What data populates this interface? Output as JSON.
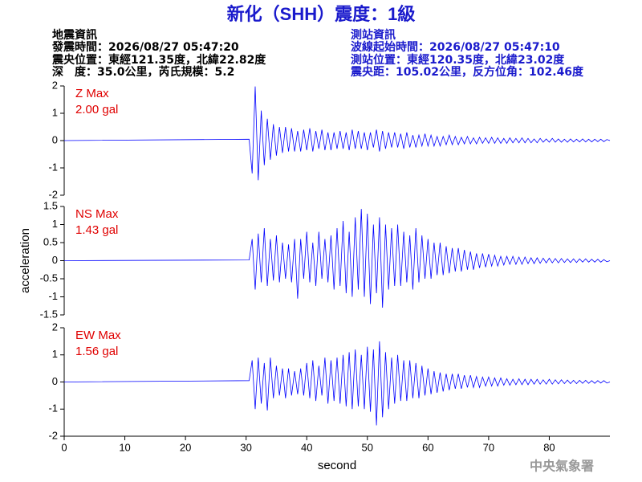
{
  "header": {
    "title": "新化（SHH）震度：1級",
    "left": [
      "地震資訊",
      "發震時間：2026/08/27 05:47:20",
      "震央位置：東經121.35度，北緯22.82度",
      "深　度：35.0公里，芮氏規模：5.2"
    ],
    "right": [
      "測站資訊",
      "波線起始時間：2026/08/27 05:47:10",
      "測站位置：東經120.35度，北緯23.02度",
      "震央距：105.02公里，反方位角：102.46度"
    ]
  },
  "chart_data": [
    {
      "type": "line",
      "annotations": [
        "Z Max",
        "2.00 gal"
      ],
      "color": "#0000ff",
      "xlim": [
        0,
        90
      ],
      "ylim": [
        -2,
        2
      ],
      "yticks": [
        -2,
        -1,
        0,
        1,
        2
      ],
      "x": [
        0,
        30.5,
        31,
        31.5,
        32,
        32.5,
        33,
        33.5,
        34,
        34.5,
        35,
        35.5,
        36,
        36.5,
        37,
        37.5,
        38,
        38.5,
        39,
        39.5,
        40,
        40.5,
        41,
        41.5,
        42,
        42.5,
        43,
        43.5,
        44,
        44.5,
        45,
        45.5,
        46,
        46.5,
        47,
        47.5,
        48,
        48.5,
        49,
        49.5,
        50,
        50.5,
        51,
        51.5,
        52,
        52.5,
        53,
        53.5,
        54,
        54.5,
        55,
        55.5,
        56,
        56.5,
        57,
        57.5,
        58,
        58.5,
        59,
        59.5,
        60,
        60.5,
        61,
        61.5,
        62,
        62.5,
        63,
        63.5,
        64,
        64.5,
        65,
        65.5,
        66,
        66.5,
        67,
        67.5,
        68,
        68.5,
        69,
        69.5,
        70,
        70.5,
        71,
        71.5,
        72,
        72.5,
        73,
        73.5,
        74,
        74.5,
        75,
        75.5,
        76,
        76.5,
        77,
        77.5,
        78,
        78.5,
        79,
        79.5,
        80,
        80.5,
        81,
        81.5,
        82,
        82.5,
        83,
        83.5,
        84,
        84.5,
        85,
        85.5,
        86,
        86.5,
        87,
        87.5,
        88,
        88.5,
        89,
        89.5,
        90
      ],
      "values": [
        0,
        0.05,
        -1.2,
        1.98,
        -1.45,
        1.1,
        -0.9,
        0.8,
        -0.7,
        0.6,
        -0.55,
        0.5,
        -0.45,
        0.5,
        -0.4,
        0.45,
        -0.4,
        0.35,
        -0.4,
        0.4,
        -0.35,
        0.45,
        -0.4,
        0.35,
        -0.3,
        0.4,
        -0.35,
        0.3,
        -0.35,
        0.3,
        -0.3,
        0.35,
        -0.3,
        0.3,
        -0.35,
        0.4,
        -0.3,
        0.35,
        -0.3,
        0.3,
        -0.35,
        0.3,
        -0.25,
        0.4,
        -0.4,
        0.35,
        -0.3,
        0.3,
        -0.25,
        0.3,
        -0.25,
        0.25,
        -0.3,
        0.3,
        -0.25,
        0.2,
        -0.25,
        0.2,
        -0.2,
        0.25,
        -0.2,
        0.2,
        -0.2,
        0.15,
        -0.2,
        0.15,
        -0.15,
        0.2,
        -0.15,
        0.15,
        -0.15,
        0.12,
        -0.12,
        0.15,
        -0.12,
        0.1,
        -0.12,
        0.12,
        -0.1,
        0.1,
        -0.1,
        0.12,
        -0.1,
        0.1,
        -0.1,
        0.08,
        -0.1,
        0.1,
        -0.08,
        0.08,
        -0.08,
        0.1,
        -0.08,
        0.08,
        -0.08,
        0.06,
        -0.08,
        0.08,
        -0.06,
        0.06,
        -0.06,
        0.08,
        -0.06,
        0.06,
        -0.06,
        0.05,
        -0.06,
        0.06,
        -0.05,
        0.05,
        -0.05,
        0.06,
        -0.05,
        0.05,
        -0.05,
        0.05,
        -0.04,
        0.05,
        -0.04,
        0.04,
        0
      ]
    },
    {
      "type": "line",
      "annotations": [
        "NS Max",
        "1.43 gal"
      ],
      "color": "#0000ff",
      "ylabel": "acceleration",
      "xlim": [
        0,
        90
      ],
      "ylim": [
        -1.5,
        1.5
      ],
      "yticks": [
        -1.5,
        -1,
        -0.5,
        0,
        0.5,
        1,
        1.5
      ],
      "x": [
        0,
        30.5,
        31,
        31.5,
        32,
        32.5,
        33,
        33.5,
        34,
        34.5,
        35,
        35.5,
        36,
        36.5,
        37,
        37.5,
        38,
        38.5,
        39,
        39.5,
        40,
        40.5,
        41,
        41.5,
        42,
        42.5,
        43,
        43.5,
        44,
        44.5,
        45,
        45.5,
        46,
        46.5,
        47,
        47.5,
        48,
        48.5,
        49,
        49.5,
        50,
        50.5,
        51,
        51.5,
        52,
        52.5,
        53,
        53.5,
        54,
        54.5,
        55,
        55.5,
        56,
        56.5,
        57,
        57.5,
        58,
        58.5,
        59,
        59.5,
        60,
        60.5,
        61,
        61.5,
        62,
        62.5,
        63,
        63.5,
        64,
        64.5,
        65,
        65.5,
        66,
        66.5,
        67,
        67.5,
        68,
        68.5,
        69,
        69.5,
        70,
        70.5,
        71,
        71.5,
        72,
        72.5,
        73,
        73.5,
        74,
        74.5,
        75,
        75.5,
        76,
        76.5,
        77,
        77.5,
        78,
        78.5,
        79,
        79.5,
        80,
        80.5,
        81,
        81.5,
        82,
        82.5,
        83,
        83.5,
        84,
        84.5,
        85,
        85.5,
        86,
        86.5,
        87,
        87.5,
        88,
        88.5,
        89,
        89.5,
        90
      ],
      "values": [
        0,
        0.02,
        0.6,
        -0.8,
        0.75,
        -0.6,
        0.9,
        -0.7,
        0.6,
        -0.55,
        0.7,
        -0.6,
        0.5,
        -0.5,
        0.45,
        -0.6,
        0.6,
        -1.05,
        0.6,
        -0.5,
        0.8,
        -0.6,
        0.5,
        -0.7,
        0.8,
        -0.5,
        0.6,
        -0.6,
        0.7,
        -0.8,
        0.9,
        -0.7,
        1.1,
        -0.9,
        0.8,
        -1.0,
        1.2,
        -0.8,
        1.43,
        -1.0,
        1.3,
        -1.2,
        1.0,
        -0.9,
        1.2,
        -1.3,
        1.0,
        -0.8,
        0.9,
        -0.7,
        1.0,
        -0.7,
        0.8,
        -0.6,
        0.7,
        -0.8,
        0.9,
        -0.6,
        0.7,
        -0.5,
        0.6,
        -0.5,
        0.5,
        -0.4,
        0.5,
        -0.4,
        0.4,
        -0.35,
        0.35,
        -0.3,
        0.35,
        -0.3,
        0.3,
        -0.25,
        0.25,
        -0.25,
        0.2,
        -0.2,
        0.2,
        -0.18,
        0.18,
        -0.15,
        0.15,
        -0.15,
        0.12,
        -0.12,
        0.12,
        -0.1,
        0.12,
        -0.1,
        0.1,
        -0.1,
        0.1,
        -0.08,
        0.08,
        -0.08,
        0.08,
        -0.07,
        0.07,
        -0.06,
        0.07,
        -0.06,
        0.06,
        -0.06,
        0.06,
        -0.05,
        0.05,
        -0.05,
        0.05,
        -0.05,
        0.05,
        -0.04,
        0.05,
        -0.04,
        0.04,
        -0.04,
        0.04,
        -0.04,
        0.03,
        -0.03,
        0
      ]
    },
    {
      "type": "line",
      "annotations": [
        "EW Max",
        "1.56 gal"
      ],
      "color": "#0000ff",
      "xlabel": "second",
      "xlim": [
        0,
        90
      ],
      "ylim": [
        -2,
        2
      ],
      "yticks": [
        -2,
        -1,
        0,
        1,
        2
      ],
      "xticks": [
        0,
        10,
        20,
        30,
        40,
        50,
        60,
        70,
        80
      ],
      "x": [
        0,
        30.5,
        31,
        31.5,
        32,
        32.5,
        33,
        33.5,
        34,
        34.5,
        35,
        35.5,
        36,
        36.5,
        37,
        37.5,
        38,
        38.5,
        39,
        39.5,
        40,
        40.5,
        41,
        41.5,
        42,
        42.5,
        43,
        43.5,
        44,
        44.5,
        45,
        45.5,
        46,
        46.5,
        47,
        47.5,
        48,
        48.5,
        49,
        49.5,
        50,
        50.5,
        51,
        51.5,
        52,
        52.5,
        53,
        53.5,
        54,
        54.5,
        55,
        55.5,
        56,
        56.5,
        57,
        57.5,
        58,
        58.5,
        59,
        59.5,
        60,
        60.5,
        61,
        61.5,
        62,
        62.5,
        63,
        63.5,
        64,
        64.5,
        65,
        65.5,
        66,
        66.5,
        67,
        67.5,
        68,
        68.5,
        69,
        69.5,
        70,
        70.5,
        71,
        71.5,
        72,
        72.5,
        73,
        73.5,
        74,
        74.5,
        75,
        75.5,
        76,
        76.5,
        77,
        77.5,
        78,
        78.5,
        79,
        79.5,
        80,
        80.5,
        81,
        81.5,
        82,
        82.5,
        83,
        83.5,
        84,
        84.5,
        85,
        85.5,
        86,
        86.5,
        87,
        87.5,
        88,
        88.5,
        89,
        89.5,
        90
      ],
      "values": [
        0,
        0.05,
        0.8,
        -1.0,
        0.9,
        -0.8,
        0.7,
        -1.05,
        0.9,
        -0.6,
        0.6,
        -0.5,
        0.5,
        -0.6,
        0.5,
        -0.5,
        0.4,
        -0.45,
        0.5,
        -0.5,
        0.7,
        -0.6,
        0.8,
        -0.7,
        0.6,
        -0.5,
        0.9,
        -0.8,
        0.8,
        -0.7,
        0.9,
        -0.8,
        1.0,
        -0.9,
        1.1,
        -1.0,
        1.2,
        -0.9,
        1.0,
        -1.0,
        1.3,
        -1.1,
        1.2,
        -1.6,
        1.5,
        -1.3,
        1.1,
        -1.0,
        0.9,
        -0.8,
        1.0,
        -0.7,
        0.8,
        -0.7,
        0.8,
        -0.6,
        0.7,
        -0.6,
        0.6,
        -0.5,
        0.5,
        -0.45,
        0.4,
        -0.4,
        0.35,
        -0.35,
        0.3,
        -0.3,
        0.3,
        -0.25,
        0.3,
        -0.25,
        0.25,
        -0.2,
        0.25,
        -0.2,
        0.2,
        -0.2,
        0.18,
        -0.15,
        0.18,
        -0.15,
        0.15,
        -0.15,
        0.15,
        -0.12,
        0.12,
        -0.12,
        0.1,
        -0.1,
        0.12,
        -0.1,
        0.1,
        -0.1,
        0.1,
        -0.08,
        0.1,
        -0.08,
        0.08,
        -0.08,
        0.1,
        -0.08,
        0.08,
        -0.07,
        0.08,
        -0.06,
        0.07,
        -0.06,
        0.06,
        -0.06,
        0.06,
        -0.05,
        0.06,
        -0.05,
        0.05,
        -0.05,
        0.05,
        -0.04,
        0.05,
        -0.04,
        0
      ]
    }
  ],
  "footer": "中央氣象署"
}
